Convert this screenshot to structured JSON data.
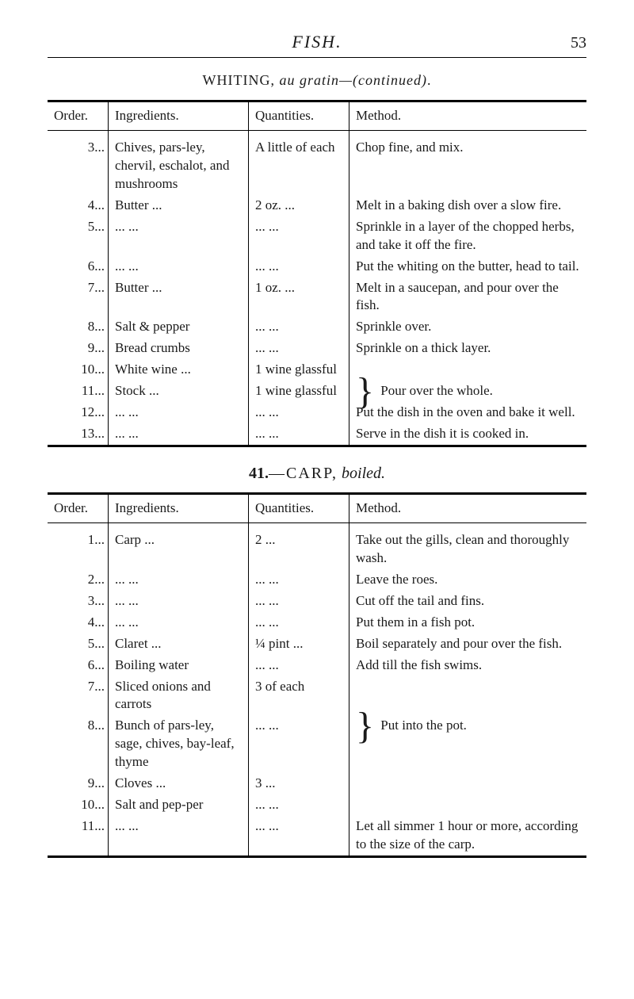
{
  "header": {
    "title": "FISH.",
    "page_number": "53"
  },
  "recipe1": {
    "title_caps": "WHITING,",
    "title_ital_1": "au gratin",
    "title_ital_2": "—(continued)",
    "columns": {
      "order": "Order.",
      "ingredients": "Ingredients.",
      "quantities": "Quantities.",
      "method": "Method."
    },
    "rows": [
      {
        "order": "3...",
        "ing": "Chives, pars-­ley, chervil, eschalot, and mushrooms",
        "qty": "A little of each",
        "method": "Chop fine, and mix."
      },
      {
        "order": "4...",
        "ing": "Butter   ...",
        "qty": "2 oz.   ...",
        "method": "Melt in a baking dish over a slow fire."
      },
      {
        "order": "5...",
        "ing": "...   ...",
        "qty": "...   ...",
        "method": "Sprinkle in a layer of the chopped herbs, and take it off the fire."
      },
      {
        "order": "6...",
        "ing": "...   ...",
        "qty": "...   ...",
        "method": "Put the whiting on the butter, head to tail."
      },
      {
        "order": "7...",
        "ing": "Butter   ...",
        "qty": "1 oz.   ...",
        "method": "Melt in a saucepan, and pour over the fish."
      },
      {
        "order": "8...",
        "ing": "Salt & pepper",
        "qty": "...   ...",
        "method": "Sprinkle over."
      },
      {
        "order": "9...",
        "ing": "Bread crumbs",
        "qty": "...   ...",
        "method": "Sprinkle on a thick layer."
      },
      {
        "order": "10...",
        "ing": "White wine ...",
        "qty": "1 wine glassful",
        "method": ""
      },
      {
        "order": "11...",
        "ing": "Stock   ...",
        "qty": "1 wine glassful",
        "method": "Pour over the whole.",
        "brace": true
      },
      {
        "order": "12...",
        "ing": "...   ...",
        "qty": "...   ...",
        "method": "Put the dish in the oven and bake it well."
      },
      {
        "order": "13...",
        "ing": "...   ...",
        "qty": "...   ...",
        "method": "Serve in the dish it is cooked in."
      }
    ]
  },
  "recipe2": {
    "number": "41.",
    "title_caps": "—CARP,",
    "title_ital": "boiled.",
    "columns": {
      "order": "Order.",
      "ingredients": "Ingredients.",
      "quantities": "Quantities.",
      "method": "Method."
    },
    "rows": [
      {
        "order": "1...",
        "ing": "Carp   ...",
        "qty": "2   ...",
        "method": "Take out the gills, clean and thoroughly wash."
      },
      {
        "order": "2...",
        "ing": "...   ...",
        "qty": "...   ...",
        "method": "Leave the roes."
      },
      {
        "order": "3...",
        "ing": "...   ...",
        "qty": "...   ...",
        "method": "Cut off the tail and fins."
      },
      {
        "order": "4...",
        "ing": "...   ...",
        "qty": "...   ...",
        "method": "Put them in a fish pot."
      },
      {
        "order": "5...",
        "ing": "Claret   ...",
        "qty": "¼ pint ...",
        "method": "Boil separately and pour over the fish."
      },
      {
        "order": "6...",
        "ing": "Boiling water",
        "qty": "...   ...",
        "method": "Add till the fish swims."
      },
      {
        "order": "7...",
        "ing": "Sliced onions and carrots",
        "qty": "3 of each",
        "method": ""
      },
      {
        "order": "8...",
        "ing": "Bunch of pars-­ley, sage, chives, bay-­leaf, thyme",
        "qty": "...   ...",
        "method": "Put into the pot.",
        "brace": true
      },
      {
        "order": "9...",
        "ing": "Cloves   ...",
        "qty": "3   ...",
        "method": ""
      },
      {
        "order": "10...",
        "ing": "Salt and pep-­per",
        "qty": "...   ...",
        "method": ""
      },
      {
        "order": "11...",
        "ing": "...   ...",
        "qty": "...   ...",
        "method": "Let all simmer 1 hour or more, according to the size of the carp."
      }
    ]
  }
}
